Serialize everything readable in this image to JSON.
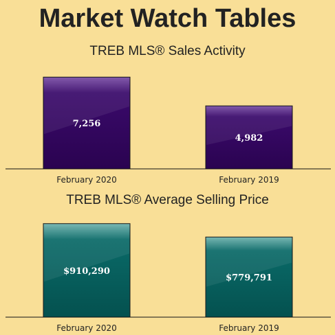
{
  "header": {
    "title": "Market Watch Tables"
  },
  "chart_data": [
    {
      "type": "bar",
      "title": "TREB MLS® Sales Activity",
      "categories": [
        "February 2020",
        "February 2019"
      ],
      "values": [
        7256,
        4982
      ],
      "value_labels": [
        "7,256",
        "4,982"
      ],
      "ylim": [
        0,
        7870
      ],
      "colors": {
        "bar_top": "#7a4fa6",
        "bar": "#3a0a6b",
        "bar_bottom": "#2a0350"
      }
    },
    {
      "type": "bar",
      "title": "TREB MLS® Average Selling Price",
      "categories": [
        "February 2020",
        "February 2019"
      ],
      "values": [
        910290,
        779791
      ],
      "value_labels": [
        "$910,290",
        "$779,791"
      ],
      "ylim": [
        0,
        982000
      ],
      "colors": {
        "bar_top": "#6fb3ae",
        "bar": "#0a6a68",
        "bar_bottom": "#04514f"
      }
    }
  ]
}
